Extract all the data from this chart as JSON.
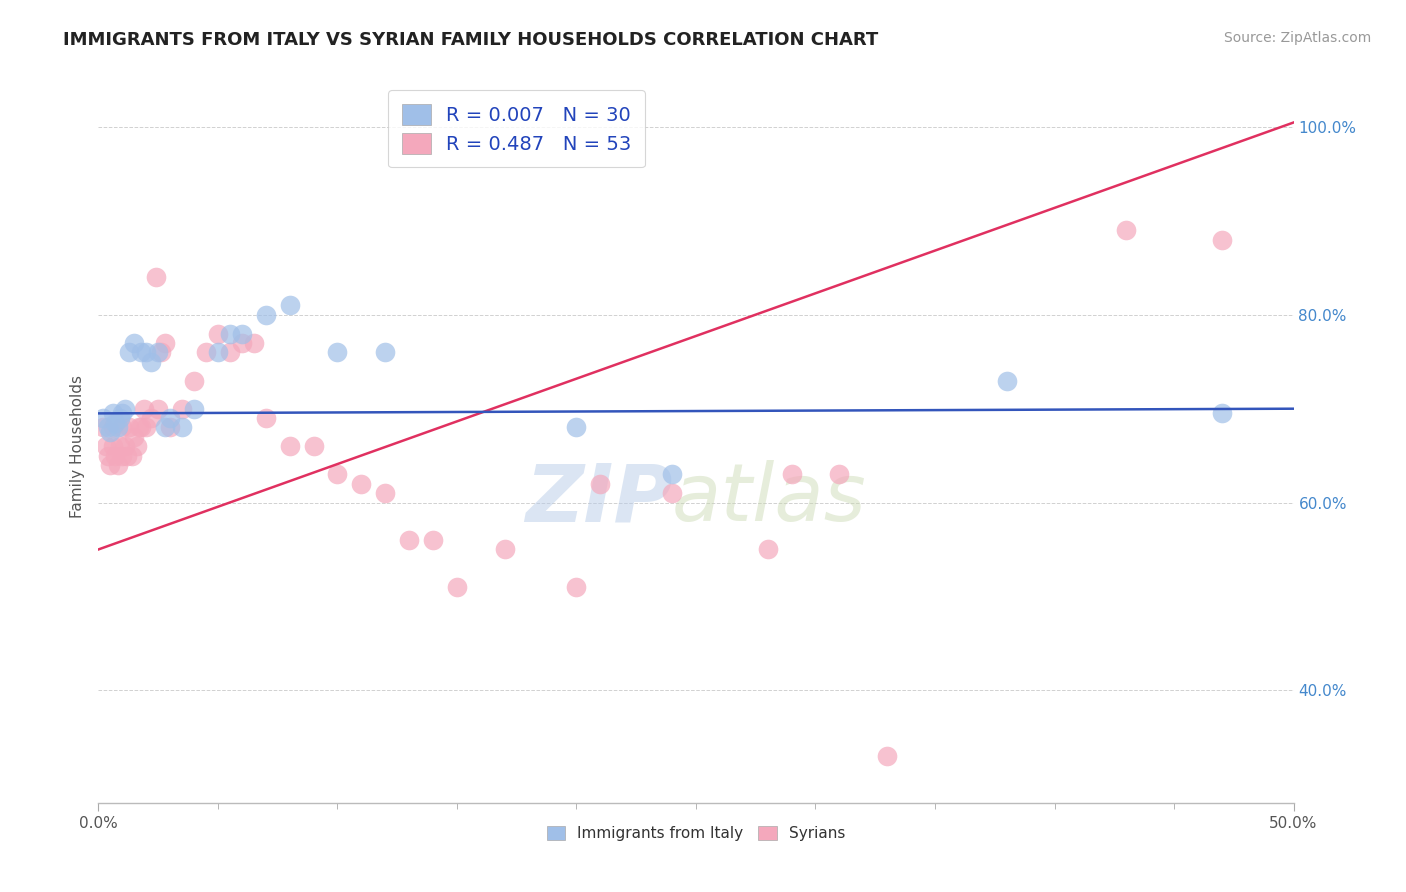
{
  "title": "IMMIGRANTS FROM ITALY VS SYRIAN FAMILY HOUSEHOLDS CORRELATION CHART",
  "source": "Source: ZipAtlas.com",
  "ylabel": "Family Households",
  "xlim": [
    0.0,
    0.5
  ],
  "ylim": [
    0.28,
    1.05
  ],
  "xtick_major": [
    0.0,
    0.5
  ],
  "xtick_major_labels": [
    "0.0%",
    "50.0%"
  ],
  "xtick_minor": [
    0.05,
    0.1,
    0.15,
    0.2,
    0.25,
    0.3,
    0.35,
    0.4,
    0.45
  ],
  "yticks": [
    0.4,
    0.6,
    0.8,
    1.0
  ],
  "ytick_labels": [
    "40.0%",
    "60.0%",
    "80.0%",
    "100.0%"
  ],
  "blue_color": "#a0bfe8",
  "pink_color": "#f4a8bc",
  "blue_line_color": "#3355bb",
  "pink_line_color": "#e03060",
  "watermark_zip": "ZIP",
  "watermark_atlas": "atlas",
  "legend_blue_label": "R = 0.007   N = 30",
  "legend_pink_label": "R = 0.487   N = 53",
  "legend_bottom_blue": "Immigrants from Italy",
  "legend_bottom_pink": "Syrians",
  "blue_scatter_x": [
    0.002,
    0.004,
    0.005,
    0.006,
    0.007,
    0.008,
    0.009,
    0.01,
    0.011,
    0.013,
    0.015,
    0.018,
    0.02,
    0.022,
    0.025,
    0.028,
    0.03,
    0.035,
    0.04,
    0.05,
    0.055,
    0.06,
    0.07,
    0.08,
    0.1,
    0.12,
    0.2,
    0.24,
    0.38,
    0.47
  ],
  "blue_scatter_y": [
    0.69,
    0.68,
    0.675,
    0.695,
    0.685,
    0.68,
    0.69,
    0.695,
    0.7,
    0.76,
    0.77,
    0.76,
    0.76,
    0.75,
    0.76,
    0.68,
    0.69,
    0.68,
    0.7,
    0.76,
    0.78,
    0.78,
    0.8,
    0.81,
    0.76,
    0.76,
    0.68,
    0.63,
    0.73,
    0.695
  ],
  "pink_scatter_x": [
    0.002,
    0.003,
    0.004,
    0.005,
    0.006,
    0.006,
    0.007,
    0.008,
    0.009,
    0.01,
    0.01,
    0.011,
    0.012,
    0.013,
    0.014,
    0.015,
    0.016,
    0.017,
    0.018,
    0.019,
    0.02,
    0.022,
    0.024,
    0.025,
    0.026,
    0.028,
    0.03,
    0.035,
    0.04,
    0.045,
    0.05,
    0.055,
    0.06,
    0.065,
    0.07,
    0.08,
    0.09,
    0.1,
    0.11,
    0.12,
    0.13,
    0.14,
    0.15,
    0.17,
    0.2,
    0.21,
    0.24,
    0.28,
    0.29,
    0.31,
    0.33,
    0.43,
    0.47
  ],
  "pink_scatter_y": [
    0.68,
    0.66,
    0.65,
    0.64,
    0.66,
    0.68,
    0.65,
    0.64,
    0.66,
    0.65,
    0.68,
    0.66,
    0.65,
    0.68,
    0.65,
    0.67,
    0.66,
    0.68,
    0.68,
    0.7,
    0.68,
    0.69,
    0.84,
    0.7,
    0.76,
    0.77,
    0.68,
    0.7,
    0.73,
    0.76,
    0.78,
    0.76,
    0.77,
    0.77,
    0.69,
    0.66,
    0.66,
    0.63,
    0.62,
    0.61,
    0.56,
    0.56,
    0.51,
    0.55,
    0.51,
    0.62,
    0.61,
    0.55,
    0.63,
    0.63,
    0.33,
    0.89,
    0.88
  ],
  "background_color": "#ffffff",
  "grid_color": "#cccccc"
}
